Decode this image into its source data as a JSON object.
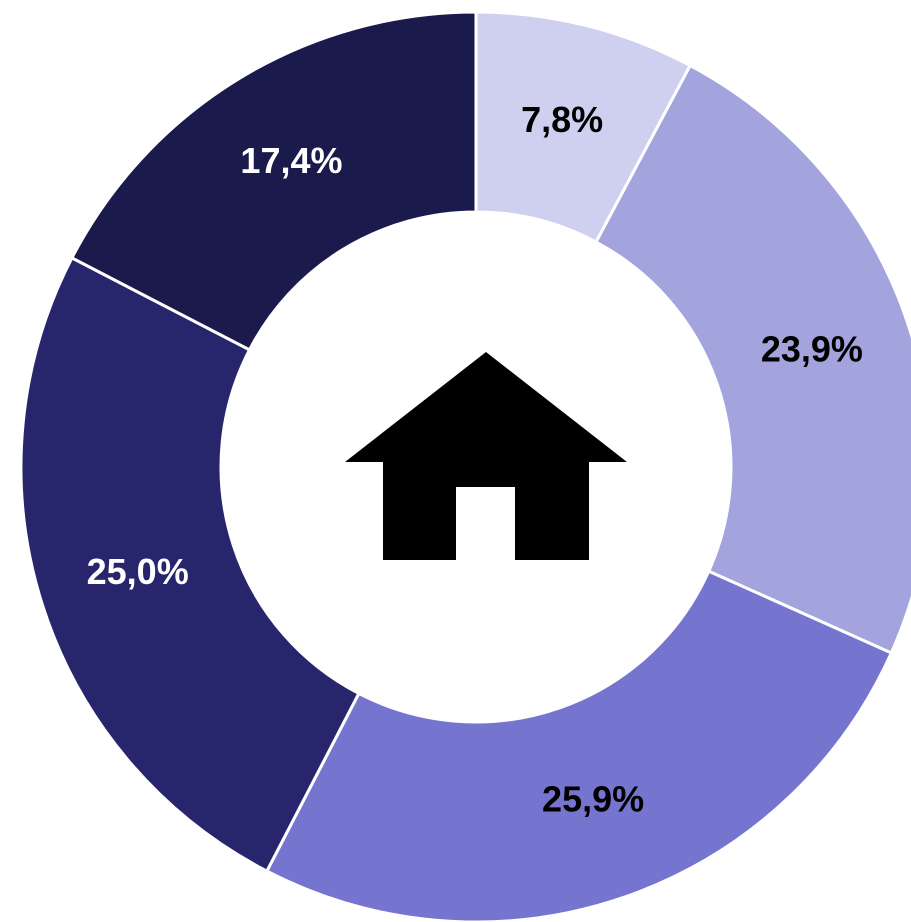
{
  "chart_data": {
    "type": "donut",
    "categories": [
      null,
      null,
      null,
      null,
      null
    ],
    "values": [
      7.8,
      23.9,
      25.9,
      25.0,
      17.4
    ],
    "value_labels": [
      "7,8%",
      "23,9%",
      "25,9%",
      "25,0%",
      "17,4%"
    ],
    "colors": [
      "#cfd0ef",
      "#a3a3de",
      "#7574cf",
      "#27266d",
      "#1b1a4d"
    ],
    "label_colors": [
      "#000000",
      "#000000",
      "#000000",
      "#ffffff",
      "#ffffff"
    ]
  }
}
